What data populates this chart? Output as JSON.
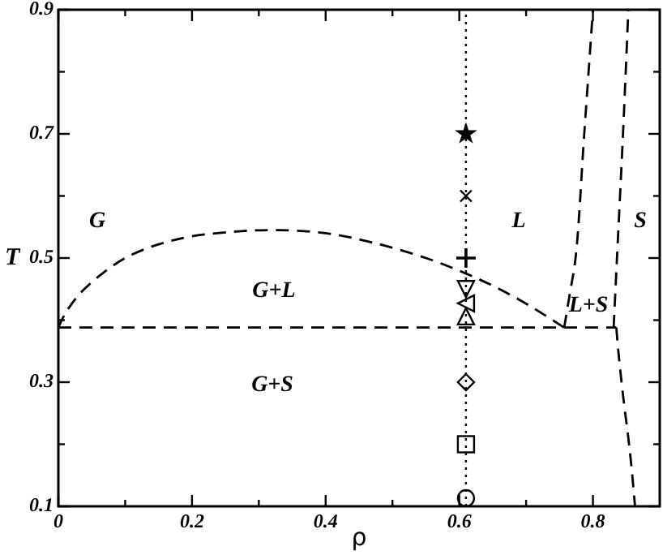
{
  "chart_data": {
    "type": "scatter",
    "xlabel": "ρ",
    "ylabel": "T",
    "xlim": [
      0,
      0.9
    ],
    "ylim": [
      0.1,
      0.9
    ],
    "xticks": [
      0,
      {
        "value": 0.1,
        "label": null
      },
      0.2,
      {
        "value": 0.3,
        "label": null
      },
      0.4,
      {
        "value": 0.5,
        "label": null
      },
      0.6,
      {
        "value": 0.7,
        "label": null
      },
      0.8
    ],
    "yticks": [
      0.1,
      {
        "value": 0.2,
        "label": null
      },
      0.3,
      {
        "value": 0.4,
        "label": null
      },
      0.5,
      {
        "value": 0.6,
        "label": null
      },
      0.7,
      {
        "value": 0.8,
        "label": null
      },
      0.9
    ],
    "grid": false,
    "ref_lines": [
      {
        "axis": "x",
        "value": 0.61,
        "line_style": "dotted",
        "color": "#000000"
      }
    ],
    "annotations": [
      "G",
      "L",
      "S",
      "G+L",
      "G+S",
      "L+S"
    ],
    "series": [
      {
        "type": "line",
        "line_style": "dashed",
        "marker": "none",
        "color": "#000000",
        "x": [
          0,
          0.835
        ],
        "values": [
          0.388,
          0.388
        ]
      },
      {
        "type": "line",
        "line_style": "dashed",
        "marker": "none",
        "color": "#000000",
        "x": [
          0,
          0.01,
          0.03,
          0.06,
          0.1,
          0.15,
          0.2,
          0.27,
          0.33,
          0.4,
          0.47,
          0.55,
          0.61,
          0.66,
          0.71,
          0.757
        ],
        "values": [
          0.388,
          0.41,
          0.44,
          0.47,
          0.5,
          0.522,
          0.535,
          0.543,
          0.545,
          0.54,
          0.525,
          0.5,
          0.475,
          0.45,
          0.42,
          0.388
        ]
      },
      {
        "type": "line",
        "line_style": "dashed",
        "marker": "none",
        "color": "#000000",
        "x": [
          0.757,
          0.765,
          0.774,
          0.787,
          0.8
        ],
        "values": [
          0.388,
          0.44,
          0.5,
          0.7,
          0.9
        ]
      },
      {
        "type": "line",
        "line_style": "dashed",
        "marker": "none",
        "color": "#000000",
        "x": [
          0.831,
          0.836,
          0.845,
          0.853
        ],
        "values": [
          0.388,
          0.5,
          0.7,
          0.9
        ]
      },
      {
        "type": "line",
        "line_style": "dashed",
        "marker": "none",
        "color": "#000000",
        "x": [
          0.835,
          0.838,
          0.846,
          0.853,
          0.858,
          0.863
        ],
        "values": [
          0.388,
          0.35,
          0.27,
          0.21,
          0.16,
          0.1
        ]
      },
      {
        "marker": "circle",
        "color": "#000000",
        "x": [
          0.61
        ],
        "values": [
          0.113
        ]
      },
      {
        "marker": "square",
        "color": "#000000",
        "x": [
          0.61
        ],
        "values": [
          0.2
        ]
      },
      {
        "marker": "diamond",
        "color": "#000000",
        "x": [
          0.61
        ],
        "values": [
          0.3
        ]
      },
      {
        "marker": "triangle",
        "color": "#000000",
        "x": [
          0.61
        ],
        "values": [
          0.406
        ]
      },
      {
        "marker": "triangle-left",
        "color": "#000000",
        "x": [
          0.61
        ],
        "values": [
          0.427
        ]
      },
      {
        "marker": "triangle-down",
        "color": "#000000",
        "x": [
          0.61
        ],
        "values": [
          0.45
        ]
      },
      {
        "marker": "plus",
        "color": "#000000",
        "x": [
          0.61
        ],
        "values": [
          0.5
        ]
      },
      {
        "marker": "cross",
        "color": "#000000",
        "x": [
          0.61
        ],
        "values": [
          0.6
        ]
      },
      {
        "marker": "star",
        "color": "#000000",
        "x": [
          0.61
        ],
        "values": [
          0.7
        ]
      }
    ]
  }
}
